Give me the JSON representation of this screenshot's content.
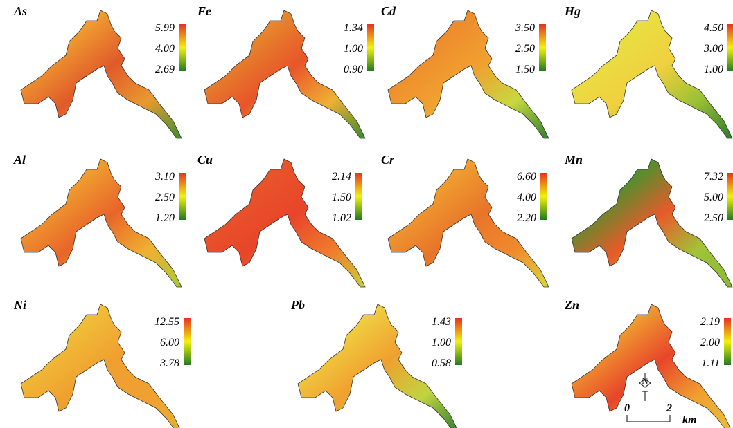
{
  "panels": [
    {
      "label": "As",
      "legend": [
        "5.99",
        "4.00",
        "2.69"
      ]
    },
    {
      "label": "Fe",
      "legend": [
        "1.34",
        "1.00",
        "0.90"
      ]
    },
    {
      "label": "Cd",
      "legend": [
        "3.50",
        "2.50",
        "1.50"
      ]
    },
    {
      "label": "Hg",
      "legend": [
        "4.50",
        "3.00",
        "1.00"
      ]
    },
    {
      "label": "Al",
      "legend": [
        "3.10",
        "2.50",
        "1.20"
      ]
    },
    {
      "label": "Cu",
      "legend": [
        "2.14",
        "1.50",
        "1.02"
      ]
    },
    {
      "label": "Cr",
      "legend": [
        "6.60",
        "4.00",
        "2.20"
      ]
    },
    {
      "label": "Mn",
      "legend": [
        "7.32",
        "5.00",
        "2.50"
      ]
    },
    {
      "label": "Ni",
      "legend": [
        "12.55",
        "6.00",
        "3.78"
      ]
    },
    {
      "label": "Pb",
      "legend": [
        "1.43",
        "1.00",
        "0.58"
      ]
    },
    {
      "label": "Zn",
      "legend": [
        "2.19",
        "2.00",
        "1.11"
      ]
    }
  ],
  "scale": {
    "north": "N",
    "start": "0",
    "end": "2",
    "unit": "km"
  }
}
